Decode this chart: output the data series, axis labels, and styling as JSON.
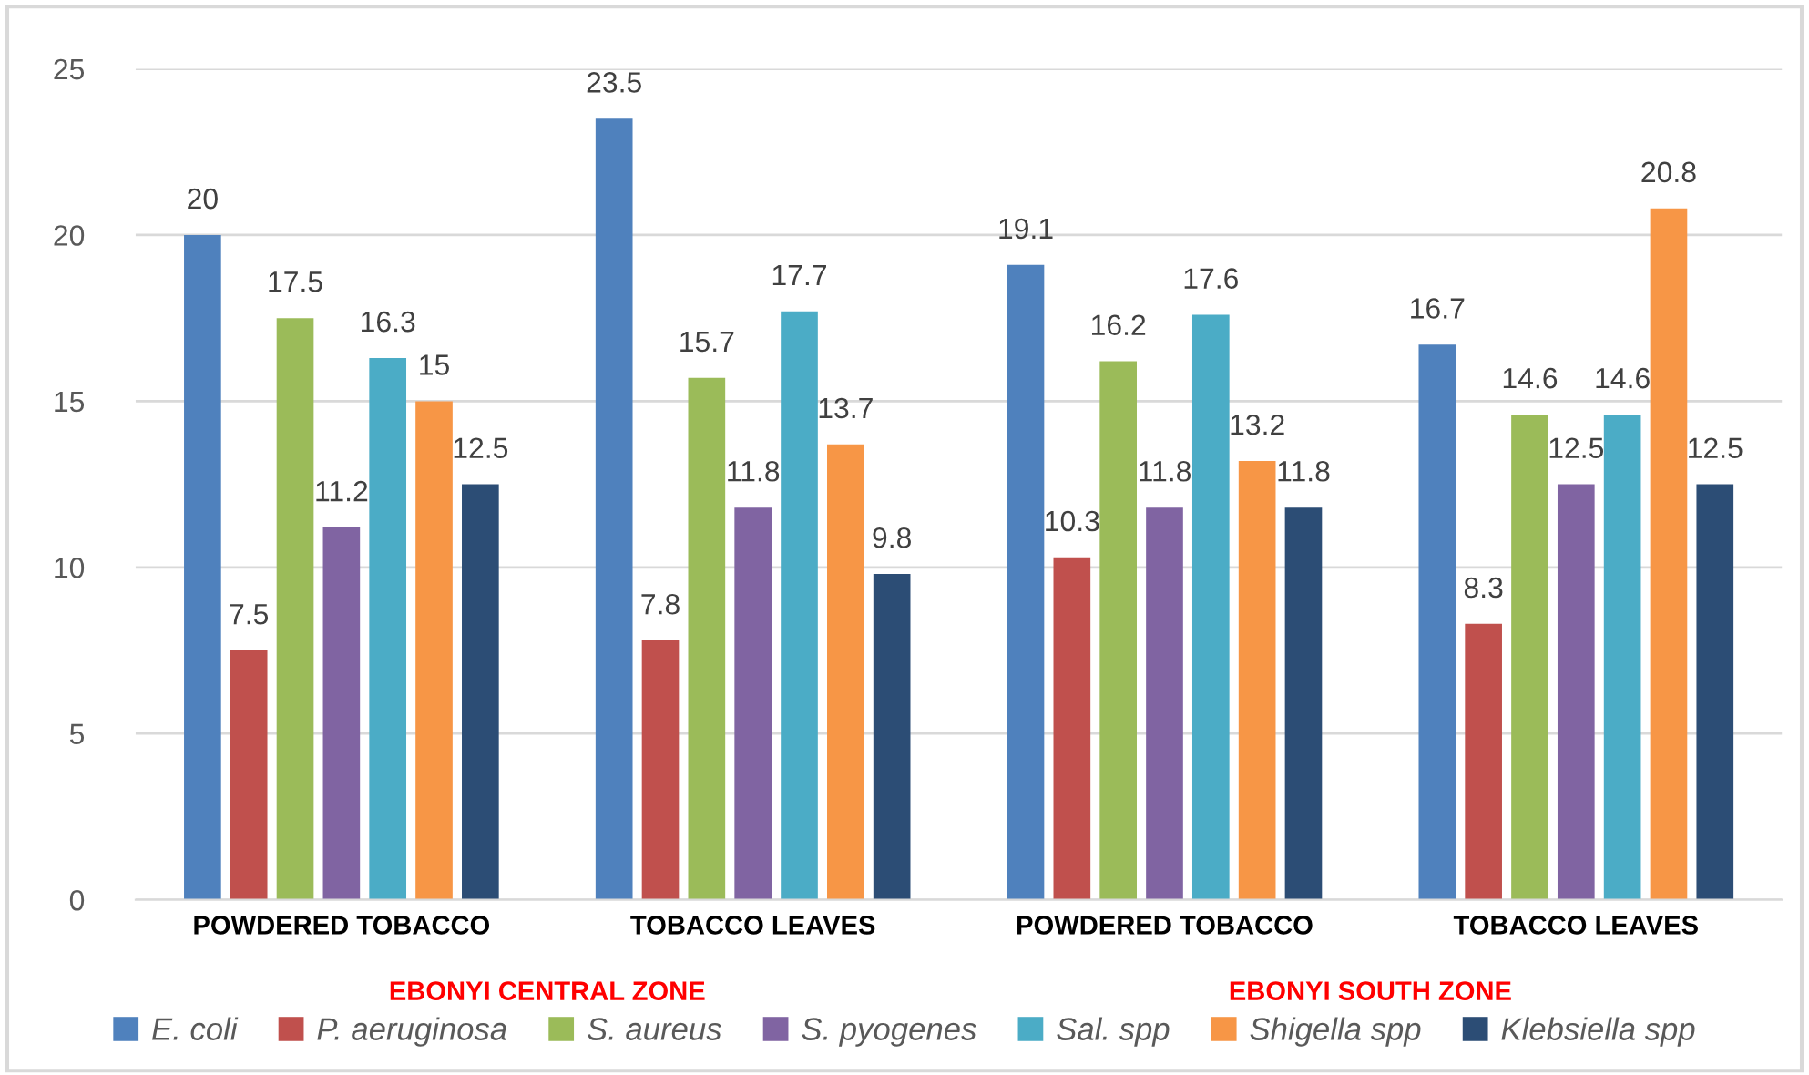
{
  "chart_data": {
    "type": "bar",
    "categories": [
      "POWDERED TOBACCO",
      "TOBACCO LEAVES",
      "POWDERED TOBACCO",
      "TOBACCO LEAVES"
    ],
    "series": [
      {
        "name": "E. coli",
        "color": "#4f81bd",
        "values": [
          20,
          23.5,
          19.1,
          16.7
        ]
      },
      {
        "name": "P. aeruginosa",
        "color": "#c0504d",
        "values": [
          7.5,
          7.8,
          10.3,
          8.3
        ]
      },
      {
        "name": "S. aureus",
        "color": "#9bbb59",
        "values": [
          17.5,
          15.7,
          16.2,
          14.6
        ]
      },
      {
        "name": "S. pyogenes",
        "color": "#8064a2",
        "values": [
          11.2,
          11.8,
          11.8,
          12.5
        ]
      },
      {
        "name": "Sal. spp",
        "color": "#4bacc6",
        "values": [
          16.3,
          17.7,
          17.6,
          14.6
        ]
      },
      {
        "name": "Shigella spp",
        "color": "#f79646",
        "values": [
          15,
          13.7,
          13.2,
          20.8
        ]
      },
      {
        "name": "Klebsiella spp",
        "color": "#2c4d75",
        "values": [
          12.5,
          9.8,
          11.8,
          12.5
        ]
      }
    ],
    "ylim": [
      0,
      25
    ],
    "yticks": [
      0,
      5,
      10,
      15,
      20,
      25
    ],
    "grid": "y",
    "data_labels": true,
    "legend": "bottom",
    "annotations": [
      "EBONYI CENTRAL ZONE",
      "EBONYI SOUTH ZONE"
    ]
  }
}
